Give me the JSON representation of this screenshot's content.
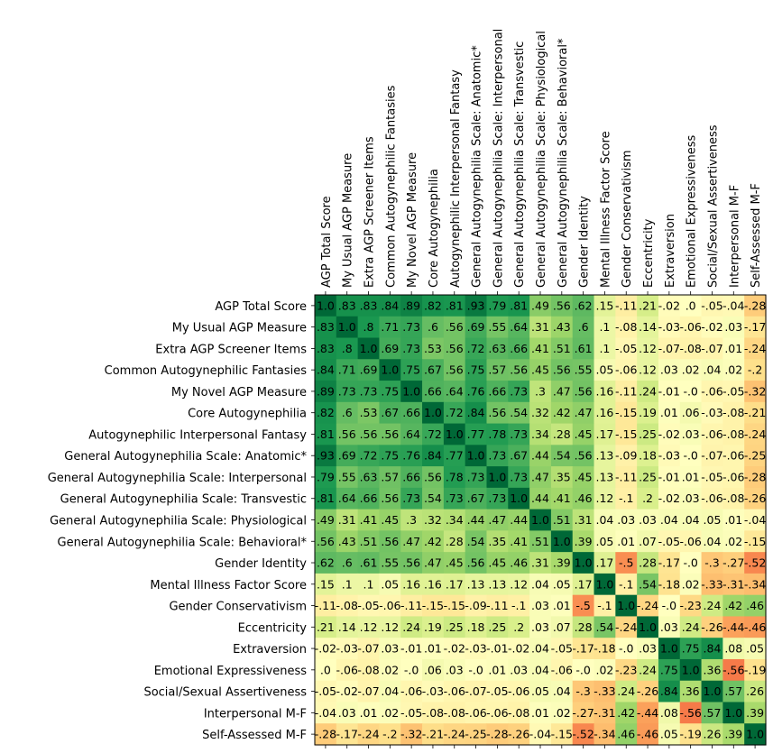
{
  "chart_data": {
    "type": "heatmap",
    "title": "",
    "xlabel": "",
    "ylabel": "",
    "colormap": "RdYlGn (red = -1, yellow = 0, green = +1)",
    "value_range": [
      -1,
      1
    ],
    "labels": [
      "AGP Total Score",
      "My Usual AGP Measure",
      "Extra AGP Screener Items",
      "Common Autogynephilic Fantasies",
      "My Novel AGP Measure",
      "Core Autogynephilia",
      "Autogynephilic Interpersonal Fantasy",
      "General Autogynephilia Scale: Anatomic*",
      "General Autogynephilia Scale: Interpersonal",
      "General Autogynephilia Scale: Transvestic",
      "General Autogynephilia Scale: Physiological",
      "General Autogynephilia Scale: Behavioral*",
      "Gender Identity",
      "Mental Illness Factor Score",
      "Gender Conservativism",
      "Eccentricity",
      "Extraversion",
      "Emotional Expressiveness",
      "Social/Sexual Assertiveness",
      "Interpersonal M-F",
      "Self-Assessed M-F"
    ],
    "cell_text": [
      [
        "1.0",
        ".83",
        ".83",
        ".84",
        ".89",
        ".82",
        ".81",
        ".93",
        ".79",
        ".81",
        ".49",
        ".56",
        ".62",
        ".15",
        "-.11",
        ".21",
        "-.02",
        ".0",
        "-.05",
        "-.04",
        "-.28"
      ],
      [
        ".83",
        "1.0",
        ".8",
        ".71",
        ".73",
        ".6",
        ".56",
        ".69",
        ".55",
        ".64",
        ".31",
        ".43",
        ".6",
        ".1",
        "-.08",
        ".14",
        "-.03",
        "-.06",
        "-.02",
        ".03",
        "-.17"
      ],
      [
        ".83",
        ".8",
        "1.0",
        ".69",
        ".73",
        ".53",
        ".56",
        ".72",
        ".63",
        ".66",
        ".41",
        ".51",
        ".61",
        ".1",
        "-.05",
        ".12",
        "-.07",
        "-.08",
        "-.07",
        ".01",
        "-.24"
      ],
      [
        ".84",
        ".71",
        ".69",
        "1.0",
        ".75",
        ".67",
        ".56",
        ".75",
        ".57",
        ".56",
        ".45",
        ".56",
        ".55",
        ".05",
        "-.06",
        ".12",
        ".03",
        ".02",
        ".04",
        ".02",
        "-.2"
      ],
      [
        ".89",
        ".73",
        ".73",
        ".75",
        "1.0",
        ".66",
        ".64",
        ".76",
        ".66",
        ".73",
        ".3",
        ".47",
        ".56",
        ".16",
        "-.11",
        ".24",
        "-.01",
        "-.0",
        "-.06",
        "-.05",
        "-.32"
      ],
      [
        ".82",
        ".6",
        ".53",
        ".67",
        ".66",
        "1.0",
        ".72",
        ".84",
        ".56",
        ".54",
        ".32",
        ".42",
        ".47",
        ".16",
        "-.15",
        ".19",
        ".01",
        ".06",
        "-.03",
        "-.08",
        "-.21"
      ],
      [
        ".81",
        ".56",
        ".56",
        ".56",
        ".64",
        ".72",
        "1.0",
        ".77",
        ".78",
        ".73",
        ".34",
        ".28",
        ".45",
        ".17",
        "-.15",
        ".25",
        "-.02",
        ".03",
        "-.06",
        "-.08",
        "-.24"
      ],
      [
        ".93",
        ".69",
        ".72",
        ".75",
        ".76",
        ".84",
        ".77",
        "1.0",
        ".73",
        ".67",
        ".44",
        ".54",
        ".56",
        ".13",
        "-.09",
        ".18",
        "-.03",
        "-.0",
        "-.07",
        "-.06",
        "-.25"
      ],
      [
        ".79",
        ".55",
        ".63",
        ".57",
        ".66",
        ".56",
        ".78",
        ".73",
        "1.0",
        ".73",
        ".47",
        ".35",
        ".45",
        ".13",
        "-.11",
        ".25",
        "-.01",
        ".01",
        "-.05",
        "-.06",
        "-.28"
      ],
      [
        ".81",
        ".64",
        ".66",
        ".56",
        ".73",
        ".54",
        ".73",
        ".67",
        ".73",
        "1.0",
        ".44",
        ".41",
        ".46",
        ".12",
        "-.1",
        ".2",
        "-.02",
        ".03",
        "-.06",
        "-.08",
        "-.26"
      ],
      [
        ".49",
        ".31",
        ".41",
        ".45",
        ".3",
        ".32",
        ".34",
        ".44",
        ".47",
        ".44",
        "1.0",
        ".51",
        ".31",
        ".04",
        ".03",
        ".03",
        ".04",
        ".04",
        ".05",
        ".01",
        "-.04"
      ],
      [
        ".56",
        ".43",
        ".51",
        ".56",
        ".47",
        ".42",
        ".28",
        ".54",
        ".35",
        ".41",
        ".51",
        "1.0",
        ".39",
        ".05",
        ".01",
        ".07",
        "-.05",
        "-.06",
        ".04",
        ".02",
        "-.15"
      ],
      [
        ".62",
        ".6",
        ".61",
        ".55",
        ".56",
        ".47",
        ".45",
        ".56",
        ".45",
        ".46",
        ".31",
        ".39",
        "1.0",
        ".17",
        "-.5",
        ".28",
        "-.17",
        "-.0",
        "-.3",
        "-.27",
        "-.52"
      ],
      [
        ".15",
        ".1",
        ".1",
        ".05",
        ".16",
        ".16",
        ".17",
        ".13",
        ".13",
        ".12",
        ".04",
        ".05",
        ".17",
        "1.0",
        "-.1",
        ".54",
        "-.18",
        ".02",
        "-.33",
        "-.31",
        "-.34"
      ],
      [
        "-.11",
        "-.08",
        "-.05",
        "-.06",
        "-.11",
        "-.15",
        "-.15",
        "-.09",
        "-.11",
        "-.1",
        ".03",
        ".01",
        "-.5",
        "-.1",
        "1.0",
        "-.24",
        "-.0",
        "-.23",
        ".24",
        ".42",
        ".46"
      ],
      [
        ".21",
        ".14",
        ".12",
        ".12",
        ".24",
        ".19",
        ".25",
        ".18",
        ".25",
        ".2",
        ".03",
        ".07",
        ".28",
        ".54",
        "-.24",
        "1.0",
        ".03",
        ".24",
        "-.26",
        "-.44",
        "-.46"
      ],
      [
        "-.02",
        "-.03",
        "-.07",
        ".03",
        "-.01",
        ".01",
        "-.02",
        "-.03",
        "-.01",
        "-.02",
        ".04",
        "-.05",
        "-.17",
        "-.18",
        "-.0",
        ".03",
        "1.0",
        ".75",
        ".84",
        ".08",
        ".05"
      ],
      [
        ".0",
        "-.06",
        "-.08",
        ".02",
        "-.0",
        ".06",
        ".03",
        "-.0",
        ".01",
        ".03",
        ".04",
        "-.06",
        "-.0",
        ".02",
        "-.23",
        ".24",
        ".75",
        "1.0",
        ".36",
        "-.56",
        "-.19"
      ],
      [
        "-.05",
        "-.02",
        "-.07",
        ".04",
        "-.06",
        "-.03",
        "-.06",
        "-.07",
        "-.05",
        "-.06",
        ".05",
        ".04",
        "-.3",
        "-.33",
        ".24",
        "-.26",
        ".84",
        ".36",
        "1.0",
        ".57",
        ".26"
      ],
      [
        "-.04",
        ".03",
        ".01",
        ".02",
        "-.05",
        "-.08",
        "-.08",
        "-.06",
        "-.06",
        "-.08",
        ".01",
        ".02",
        "-.27",
        "-.31",
        ".42",
        "-.44",
        ".08",
        "-.56",
        ".57",
        "1.0",
        ".39"
      ],
      [
        "-.28",
        "-.17",
        "-.24",
        "-.2",
        "-.32",
        "-.21",
        "-.24",
        "-.25",
        "-.28",
        "-.26",
        "-.04",
        "-.15",
        "-.52",
        "-.34",
        ".46",
        "-.46",
        ".05",
        "-.19",
        ".26",
        ".39",
        "1.0"
      ]
    ],
    "grid": false,
    "legend": "none"
  }
}
